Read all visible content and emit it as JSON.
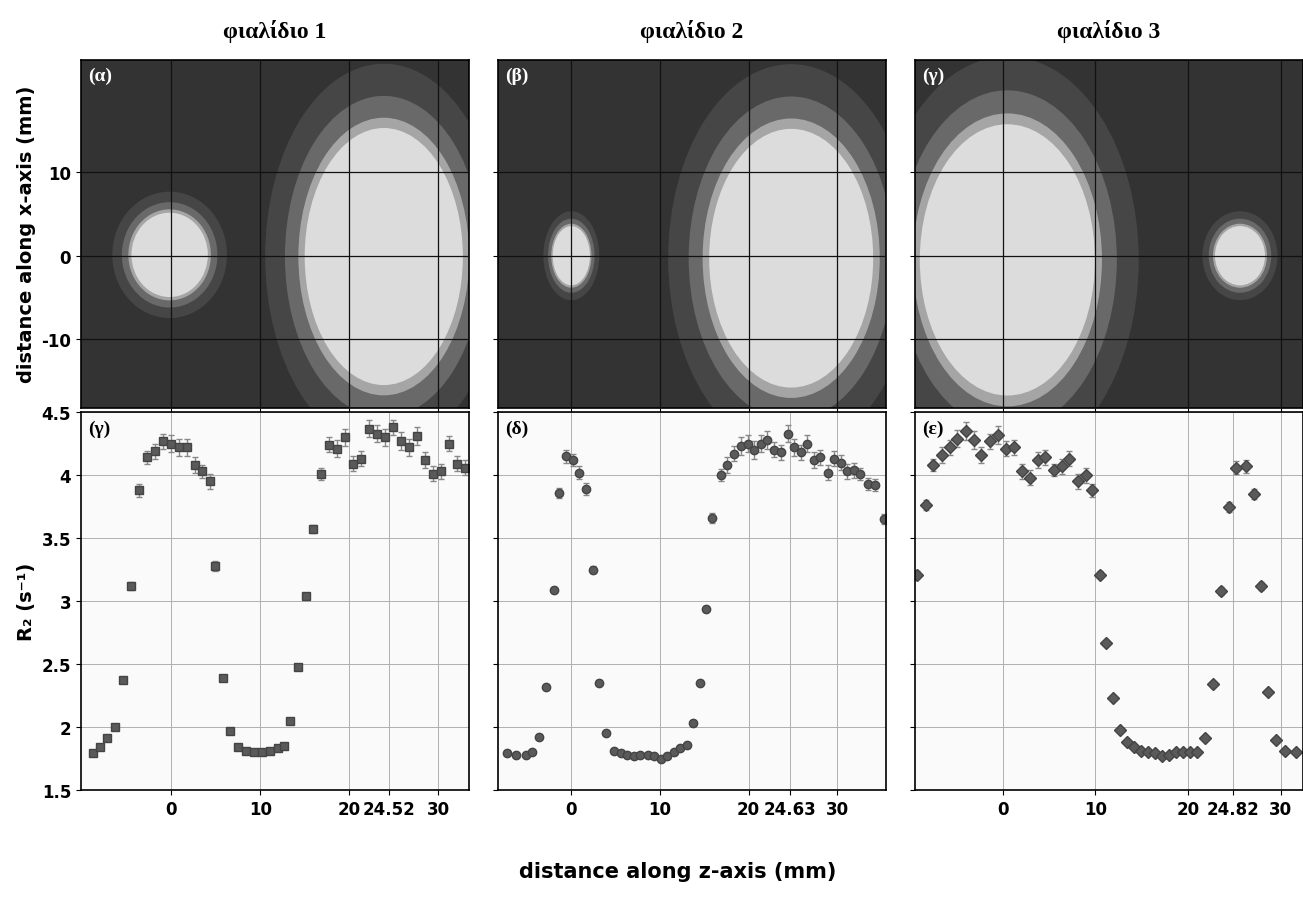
{
  "x_label": "distance along z-axis (mm)",
  "chart_data": [
    {
      "type": "image",
      "title": "φιαλίδιο 1",
      "annotation": "(α)",
      "y_label": "distance along x-axis (mm)",
      "xlim": [
        -10.2,
        33.5
      ],
      "ylim": [
        -18.2,
        23.5
      ],
      "xticks": [
        0,
        10,
        20,
        30
      ],
      "yticks": [
        -10,
        0,
        10
      ],
      "grid": true,
      "tick_labels": "y",
      "ellipses": [
        {
          "z": -0.2,
          "x": 0.1,
          "width": 8.6,
          "height": 10.1
        },
        {
          "z": 23.9,
          "x": -0.1,
          "width": 17.8,
          "height": 30.8
        }
      ]
    },
    {
      "type": "image",
      "title": "φιαλίδιο 2",
      "annotation": "(β)",
      "xlim": [
        -8.3,
        35.5
      ],
      "ylim": [
        -18.2,
        23.5
      ],
      "xticks": [
        0,
        10,
        20,
        30
      ],
      "yticks": [
        -10,
        0,
        10
      ],
      "grid": true,
      "tick_labels": false,
      "ellipses": [
        {
          "z": 0.0,
          "x": 0.0,
          "width": 4.2,
          "height": 7.1
        },
        {
          "z": 24.8,
          "x": -0.3,
          "width": 18.5,
          "height": 31.0
        }
      ]
    },
    {
      "type": "image",
      "title": "φιαλίδιο 3",
      "annotation": "(γ)",
      "xlim": [
        -9.5,
        32.4
      ],
      "ylim": [
        -18.2,
        23.5
      ],
      "xticks": [
        0,
        10,
        20,
        30
      ],
      "yticks": [
        -10,
        0,
        10
      ],
      "grid": true,
      "tick_labels": false,
      "ellipses": [
        {
          "z": 0.5,
          "x": -0.5,
          "width": 18.9,
          "height": 32.5
        },
        {
          "z": 25.6,
          "x": 0.0,
          "width": 5.4,
          "height": 7.1
        }
      ]
    },
    {
      "type": "scatter",
      "annotation": "(γ)",
      "y_label": "R₂ (s⁻¹)",
      "xlim": [
        -10.2,
        33.5
      ],
      "ylim": [
        1.5,
        4.5
      ],
      "xticks": [
        0,
        10,
        20,
        24.52,
        30
      ],
      "yticks": [
        1.5,
        2,
        2.5,
        3,
        3.5,
        4,
        4.5
      ],
      "grid": true,
      "marker": "square",
      "color": "#5a5a5a",
      "x": [
        -8.8,
        -8.0,
        -7.2,
        -6.3,
        -5.5,
        -4.6,
        -3.7,
        -2.8,
        -1.9,
        -1.0,
        -0.1,
        0.8,
        1.7,
        2.6,
        3.4,
        4.3,
        4.9,
        5.8,
        6.6,
        7.5,
        8.4,
        9.3,
        10.2,
        11.1,
        12.0,
        12.7,
        13.4,
        14.2,
        15.1,
        15.9,
        16.8,
        17.7,
        18.6,
        19.5,
        20.4,
        21.3,
        22.2,
        23.1,
        24.0,
        24.9,
        25.8,
        26.7,
        27.6,
        28.5,
        29.4,
        30.3,
        31.2,
        32.1,
        33.0
      ],
      "values": [
        1.79,
        1.84,
        1.91,
        2.0,
        2.37,
        3.12,
        3.88,
        4.14,
        4.19,
        4.27,
        4.25,
        4.22,
        4.22,
        4.08,
        4.03,
        3.95,
        3.28,
        2.39,
        1.97,
        1.84,
        1.81,
        1.8,
        1.8,
        1.81,
        1.83,
        1.85,
        2.05,
        2.48,
        3.04,
        3.57,
        4.01,
        4.24,
        4.21,
        4.3,
        4.09,
        4.13,
        4.37,
        4.33,
        4.3,
        4.38,
        4.27,
        4.22,
        4.31,
        4.12,
        4.01,
        4.03,
        4.25,
        4.09,
        4.06
      ],
      "errors": [
        0.01,
        0.01,
        0.01,
        0.01,
        0.02,
        0.03,
        0.05,
        0.05,
        0.06,
        0.06,
        0.07,
        0.07,
        0.07,
        0.06,
        0.05,
        0.06,
        0.04,
        0.02,
        0.01,
        0.01,
        0.01,
        0.01,
        0.01,
        0.01,
        0.01,
        0.01,
        0.01,
        0.01,
        0.02,
        0.03,
        0.05,
        0.06,
        0.07,
        0.07,
        0.06,
        0.06,
        0.07,
        0.07,
        0.07,
        0.06,
        0.07,
        0.07,
        0.07,
        0.06,
        0.06,
        0.06,
        0.06,
        0.06,
        0.06
      ]
    },
    {
      "type": "scatter",
      "annotation": "(δ)",
      "xlim": [
        -8.3,
        35.5
      ],
      "ylim": [
        1.5,
        4.5
      ],
      "xticks": [
        0,
        10,
        20,
        24.63,
        30
      ],
      "yticks": [
        1.5,
        2,
        2.5,
        3,
        3.5,
        4,
        4.5
      ],
      "grid": true,
      "tick_labels": "x",
      "marker": "circle",
      "color": "#5a5a5a",
      "x": [
        -7.2,
        -6.2,
        -5.1,
        -4.4,
        -3.6,
        -2.9,
        -2.0,
        -1.4,
        -0.6,
        0.2,
        0.9,
        1.6,
        2.4,
        3.1,
        3.9,
        4.8,
        5.6,
        6.3,
        7.1,
        7.8,
        8.6,
        9.3,
        10.1,
        10.8,
        11.6,
        12.3,
        13.0,
        13.7,
        14.5,
        15.2,
        15.9,
        16.9,
        17.6,
        18.4,
        19.1,
        19.9,
        20.6,
        21.4,
        22.1,
        22.9,
        23.6,
        24.4,
        25.1,
        25.9,
        26.6,
        27.4,
        28.1,
        28.9,
        29.6,
        30.4,
        31.1,
        31.9,
        32.6,
        33.5,
        34.3,
        35.3
      ],
      "values": [
        1.79,
        1.78,
        1.78,
        1.8,
        1.92,
        2.32,
        3.09,
        3.86,
        4.15,
        4.12,
        4.02,
        3.89,
        3.25,
        2.35,
        1.95,
        1.81,
        1.79,
        1.78,
        1.77,
        1.78,
        1.78,
        1.77,
        1.75,
        1.77,
        1.8,
        1.83,
        1.86,
        2.03,
        2.35,
        2.94,
        3.66,
        4.0,
        4.08,
        4.17,
        4.23,
        4.25,
        4.2,
        4.25,
        4.28,
        4.2,
        4.18,
        4.33,
        4.22,
        4.18,
        4.25,
        4.12,
        4.14,
        4.02,
        4.13,
        4.1,
        4.03,
        4.04,
        4.01,
        3.93,
        3.92,
        3.65
      ],
      "errors": [
        0.01,
        0.01,
        0.01,
        0.01,
        0.01,
        0.01,
        0.02,
        0.04,
        0.05,
        0.05,
        0.05,
        0.05,
        0.03,
        0.02,
        0.01,
        0.01,
        0.01,
        0.01,
        0.01,
        0.01,
        0.01,
        0.01,
        0.01,
        0.01,
        0.01,
        0.01,
        0.01,
        0.01,
        0.02,
        0.02,
        0.04,
        0.05,
        0.06,
        0.06,
        0.07,
        0.07,
        0.07,
        0.07,
        0.07,
        0.06,
        0.06,
        0.07,
        0.07,
        0.06,
        0.07,
        0.06,
        0.06,
        0.06,
        0.06,
        0.06,
        0.06,
        0.06,
        0.05,
        0.05,
        0.05,
        0.04
      ]
    },
    {
      "type": "scatter",
      "annotation": "(ε)",
      "xlim": [
        -9.5,
        32.4
      ],
      "ylim": [
        1.5,
        4.5
      ],
      "xticks": [
        0,
        10,
        20,
        24.82,
        30
      ],
      "yticks": [
        1.5,
        2,
        2.5,
        3,
        3.5,
        4,
        4.5
      ],
      "grid": true,
      "tick_labels": "x",
      "marker": "diamond",
      "color": "#5a5a5a",
      "x": [
        -9.2,
        -8.3,
        -7.5,
        -6.6,
        -5.7,
        -4.9,
        -4.0,
        -3.1,
        -2.3,
        -1.4,
        -0.5,
        0.3,
        1.2,
        2.1,
        2.9,
        3.8,
        4.6,
        5.5,
        6.4,
        7.2,
        8.1,
        9.0,
        9.6,
        10.5,
        11.1,
        11.9,
        12.6,
        13.4,
        14.2,
        14.9,
        15.7,
        16.4,
        17.2,
        17.9,
        18.7,
        19.5,
        20.2,
        21.0,
        21.8,
        22.7,
        23.6,
        24.4,
        25.2,
        26.2,
        27.1,
        27.9,
        28.6,
        29.5,
        30.5,
        31.6
      ],
      "values": [
        3.21,
        3.76,
        4.08,
        4.16,
        4.22,
        4.29,
        4.35,
        4.28,
        4.16,
        4.27,
        4.32,
        4.21,
        4.22,
        4.03,
        3.98,
        4.12,
        4.14,
        4.04,
        4.07,
        4.13,
        3.95,
        4.0,
        3.88,
        3.21,
        2.67,
        2.23,
        1.98,
        1.88,
        1.84,
        1.81,
        1.8,
        1.79,
        1.77,
        1.78,
        1.8,
        1.8,
        1.8,
        1.8,
        1.91,
        2.34,
        3.08,
        3.75,
        4.06,
        4.07,
        3.85,
        3.12,
        2.28,
        1.9,
        1.81,
        1.8
      ],
      "errors": [
        0.03,
        0.04,
        0.05,
        0.06,
        0.06,
        0.07,
        0.07,
        0.07,
        0.06,
        0.06,
        0.07,
        0.06,
        0.06,
        0.06,
        0.06,
        0.06,
        0.06,
        0.05,
        0.06,
        0.06,
        0.06,
        0.06,
        0.05,
        0.03,
        0.02,
        0.01,
        0.01,
        0.01,
        0.01,
        0.01,
        0.01,
        0.01,
        0.01,
        0.01,
        0.01,
        0.01,
        0.01,
        0.01,
        0.01,
        0.02,
        0.03,
        0.04,
        0.05,
        0.05,
        0.04,
        0.03,
        0.02,
        0.01,
        0.01,
        0.01
      ]
    }
  ]
}
